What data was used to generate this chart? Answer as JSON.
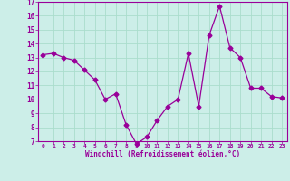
{
  "x": [
    0,
    1,
    2,
    3,
    4,
    5,
    6,
    7,
    8,
    9,
    10,
    11,
    12,
    13,
    14,
    15,
    16,
    17,
    18,
    19,
    20,
    21,
    22,
    23
  ],
  "y": [
    13.2,
    13.3,
    13.0,
    12.8,
    12.1,
    11.4,
    10.0,
    10.4,
    8.2,
    6.8,
    7.3,
    8.5,
    9.5,
    10.0,
    13.3,
    9.5,
    14.6,
    16.7,
    13.7,
    13.0,
    10.8,
    10.8,
    10.2,
    10.1
  ],
  "line_color": "#990099",
  "marker": "D",
  "marker_size": 2.5,
  "background_color": "#cceee8",
  "grid_color": "#aaddcc",
  "xlabel": "Windchill (Refroidissement éolien,°C)",
  "xlabel_color": "#990099",
  "tick_color": "#990099",
  "ylim": [
    7,
    17
  ],
  "xlim": [
    -0.5,
    23.5
  ],
  "yticks": [
    7,
    8,
    9,
    10,
    11,
    12,
    13,
    14,
    15,
    16,
    17
  ],
  "xticks": [
    0,
    1,
    2,
    3,
    4,
    5,
    6,
    7,
    8,
    9,
    10,
    11,
    12,
    13,
    14,
    15,
    16,
    17,
    18,
    19,
    20,
    21,
    22,
    23
  ],
  "font_family": "monospace"
}
